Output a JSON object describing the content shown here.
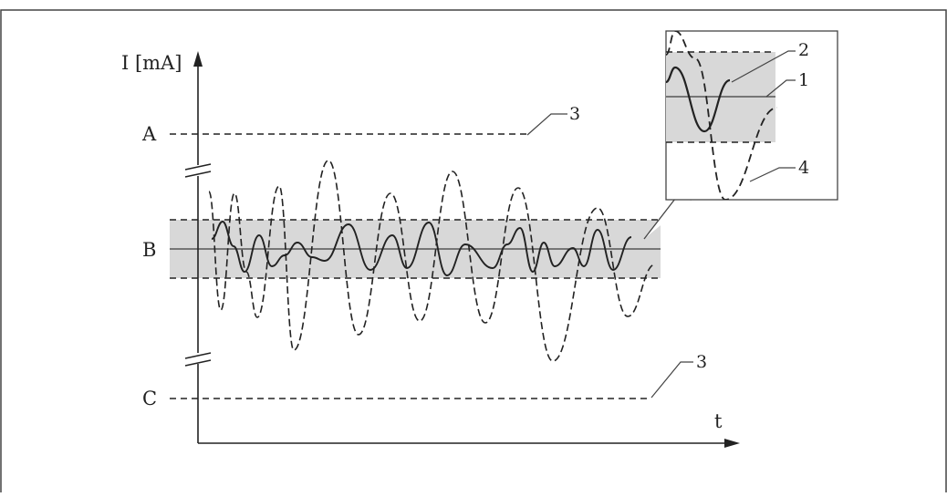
{
  "diagram": {
    "y_axis_label": "I [mA]",
    "x_axis_label": "t",
    "level_labels": {
      "upper": "A",
      "middle": "B",
      "lower": "C"
    },
    "callouts": {
      "one": "1",
      "two": "2",
      "three": "3",
      "four": "4"
    },
    "colors": {
      "band": "#d8d8d8",
      "line": "#222222",
      "border": "#444444"
    }
  }
}
